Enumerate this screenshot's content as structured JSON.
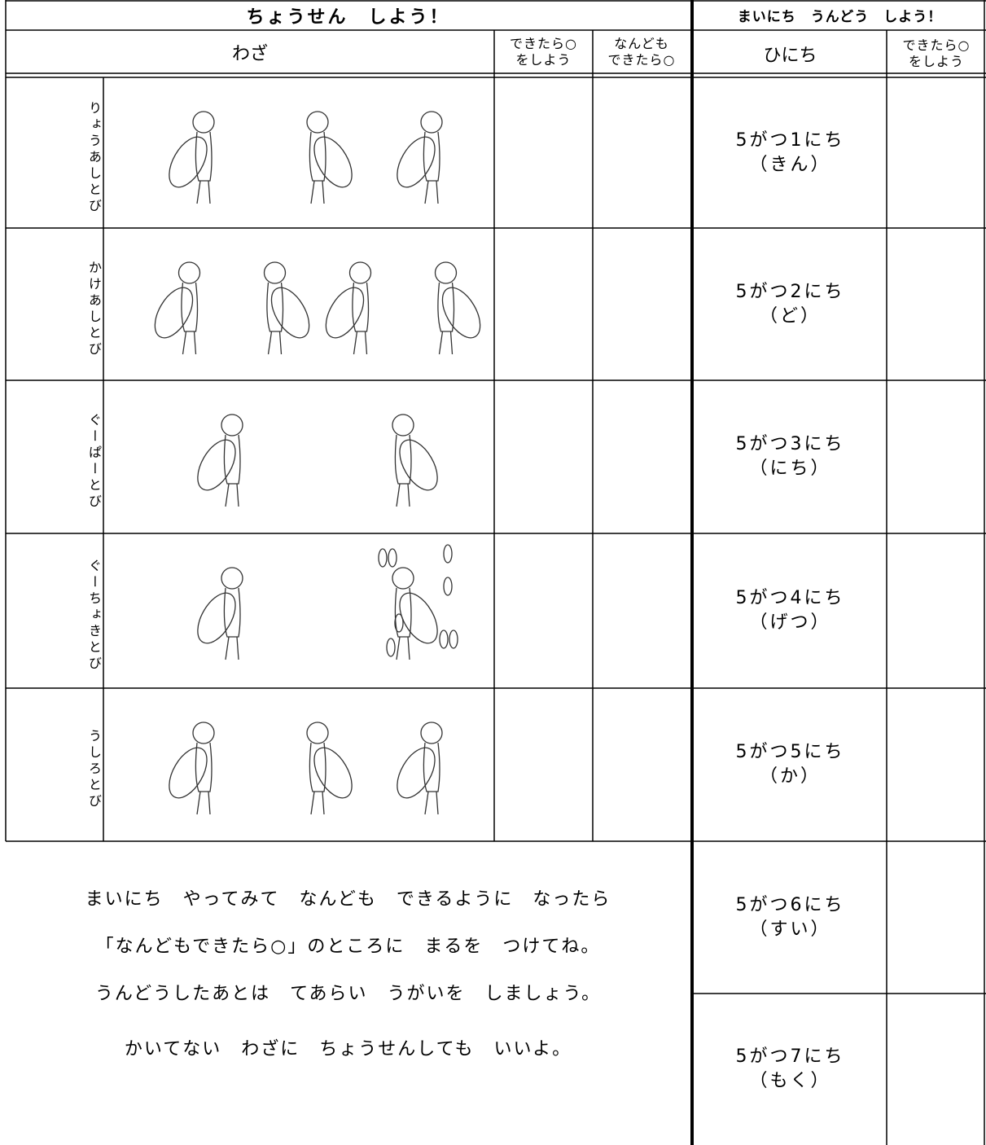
{
  "header": {
    "challenge_title": "ちょうせん　しよう！",
    "daily_title": "まいにち　うんどう　しよう！"
  },
  "columns": {
    "skill": "わざ",
    "done": [
      "できたら○",
      "をしよう"
    ],
    "many": [
      "なんども",
      "できたら○"
    ],
    "date": "ひにち",
    "daily_done": [
      "できたら○",
      "をしよう"
    ]
  },
  "skills": [
    "りょうあしとび",
    "かけあしとび",
    "ぐーぱーとび",
    "ぐーちょきとび",
    "うしろとび"
  ],
  "days": [
    {
      "date": "5がつ1にち",
      "weekday": "（きん）"
    },
    {
      "date": "5がつ2にち",
      "weekday": "（ど）"
    },
    {
      "date": "5がつ3にち",
      "weekday": "（にち）"
    },
    {
      "date": "5がつ4にち",
      "weekday": "（げつ）"
    },
    {
      "date": "5がつ5にち",
      "weekday": "（か）"
    },
    {
      "date": "5がつ6にち",
      "weekday": "（すい）"
    },
    {
      "date": "5がつ7にち",
      "weekday": "（もく）"
    }
  ],
  "instructions": [
    "まいにち　やってみて　なんども　できるように　なったら",
    "「なんどもできたら○」のところに　まるを　つけてね。",
    "うんどうしたあとは　てあらい　うがいを　しましょう。",
    "かいてない　わざに　ちょうせんしても　いいよ。"
  ]
}
